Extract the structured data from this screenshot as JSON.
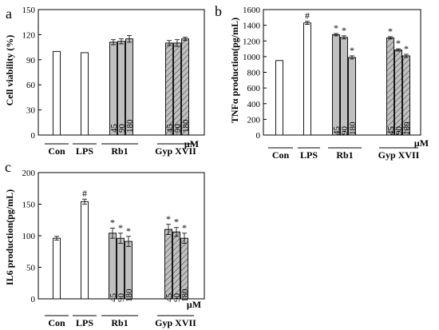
{
  "chart_data": [
    {
      "panel_letter": "a",
      "type": "bar",
      "ylabel": "Cell viability (%)",
      "ylim": [
        0,
        150
      ],
      "yticks": [
        0,
        30,
        60,
        90,
        120,
        150
      ],
      "concentration_unit": "μM",
      "groups": [
        {
          "label": "Con",
          "bars": [
            {
              "value": 100,
              "err": 0,
              "hatch": false,
              "fill": "#ffffff",
              "sub": "",
              "mark": ""
            }
          ]
        },
        {
          "label": "LPS",
          "bars": [
            {
              "value": 98.5,
              "err": 0,
              "hatch": false,
              "fill": "#ffffff",
              "sub": "",
              "mark": ""
            }
          ]
        },
        {
          "label": "Rb1",
          "bars": [
            {
              "value": 111,
              "err": 3,
              "hatch": false,
              "fill": "#c0c0c0",
              "sub": "45",
              "mark": ""
            },
            {
              "value": 112,
              "err": 3,
              "hatch": false,
              "fill": "#c0c0c0",
              "sub": "90",
              "mark": ""
            },
            {
              "value": 115,
              "err": 4,
              "hatch": false,
              "fill": "#c0c0c0",
              "sub": "180",
              "mark": ""
            }
          ]
        },
        {
          "label": "Gyp XVII",
          "bars": [
            {
              "value": 110,
              "err": 3,
              "hatch": true,
              "fill": "#c0c0c0",
              "sub": "45",
              "mark": ""
            },
            {
              "value": 110,
              "err": 4,
              "hatch": true,
              "fill": "#c0c0c0",
              "sub": "90",
              "mark": ""
            },
            {
              "value": 115,
              "err": 2,
              "hatch": true,
              "fill": "#c0c0c0",
              "sub": "180",
              "mark": ""
            }
          ]
        }
      ]
    },
    {
      "panel_letter": "b",
      "type": "bar",
      "ylabel": "TNFα production(pg/mL)",
      "ylim": [
        0,
        1600
      ],
      "yticks": [
        0,
        200,
        400,
        600,
        800,
        1000,
        1200,
        1400,
        1600
      ],
      "concentration_unit": "μM",
      "groups": [
        {
          "label": "Con",
          "bars": [
            {
              "value": 950,
              "err": 0,
              "hatch": false,
              "fill": "#ffffff",
              "sub": "",
              "mark": ""
            }
          ]
        },
        {
          "label": "LPS",
          "bars": [
            {
              "value": 1430,
              "err": 20,
              "hatch": false,
              "fill": "#ffffff",
              "sub": "",
              "mark": "#"
            }
          ]
        },
        {
          "label": "Rb1",
          "bars": [
            {
              "value": 1280,
              "err": 15,
              "hatch": false,
              "fill": "#c0c0c0",
              "sub": "45",
              "mark": "*"
            },
            {
              "value": 1245,
              "err": 20,
              "hatch": false,
              "fill": "#c0c0c0",
              "sub": "90",
              "mark": "*"
            },
            {
              "value": 990,
              "err": 20,
              "hatch": false,
              "fill": "#c0c0c0",
              "sub": "180",
              "mark": "*"
            }
          ]
        },
        {
          "label": "Gyp XVII",
          "bars": [
            {
              "value": 1240,
              "err": 15,
              "hatch": true,
              "fill": "#c0c0c0",
              "sub": "45",
              "mark": "*"
            },
            {
              "value": 1085,
              "err": 15,
              "hatch": true,
              "fill": "#c0c0c0",
              "sub": "90",
              "mark": "*"
            },
            {
              "value": 1010,
              "err": 20,
              "hatch": true,
              "fill": "#c0c0c0",
              "sub": "180",
              "mark": "*"
            }
          ]
        }
      ]
    },
    {
      "panel_letter": "c",
      "type": "bar",
      "ylabel": "IL6 production(pg/mL)",
      "ylim": [
        0,
        200
      ],
      "yticks": [
        0,
        50,
        100,
        150,
        200
      ],
      "concentration_unit": "μM",
      "groups": [
        {
          "label": "Con",
          "bars": [
            {
              "value": 96,
              "err": 3,
              "hatch": false,
              "fill": "#ffffff",
              "sub": "",
              "mark": ""
            }
          ]
        },
        {
          "label": "LPS",
          "bars": [
            {
              "value": 154,
              "err": 4,
              "hatch": false,
              "fill": "#ffffff",
              "sub": "",
              "mark": "#"
            }
          ]
        },
        {
          "label": "Rb1",
          "bars": [
            {
              "value": 104,
              "err": 8,
              "hatch": false,
              "fill": "#c0c0c0",
              "sub": "45",
              "mark": "*"
            },
            {
              "value": 96,
              "err": 8,
              "hatch": false,
              "fill": "#c0c0c0",
              "sub": "90",
              "mark": "*"
            },
            {
              "value": 91,
              "err": 8,
              "hatch": false,
              "fill": "#c0c0c0",
              "sub": "180",
              "mark": "*"
            }
          ]
        },
        {
          "label": "Gyp XVII",
          "bars": [
            {
              "value": 110,
              "err": 8,
              "hatch": true,
              "fill": "#c0c0c0",
              "sub": "45",
              "mark": "*"
            },
            {
              "value": 106,
              "err": 7,
              "hatch": true,
              "fill": "#c0c0c0",
              "sub": "90",
              "mark": "*"
            },
            {
              "value": 96,
              "err": 8,
              "hatch": true,
              "fill": "#c0c0c0",
              "sub": "180",
              "mark": "*"
            }
          ]
        }
      ]
    }
  ]
}
